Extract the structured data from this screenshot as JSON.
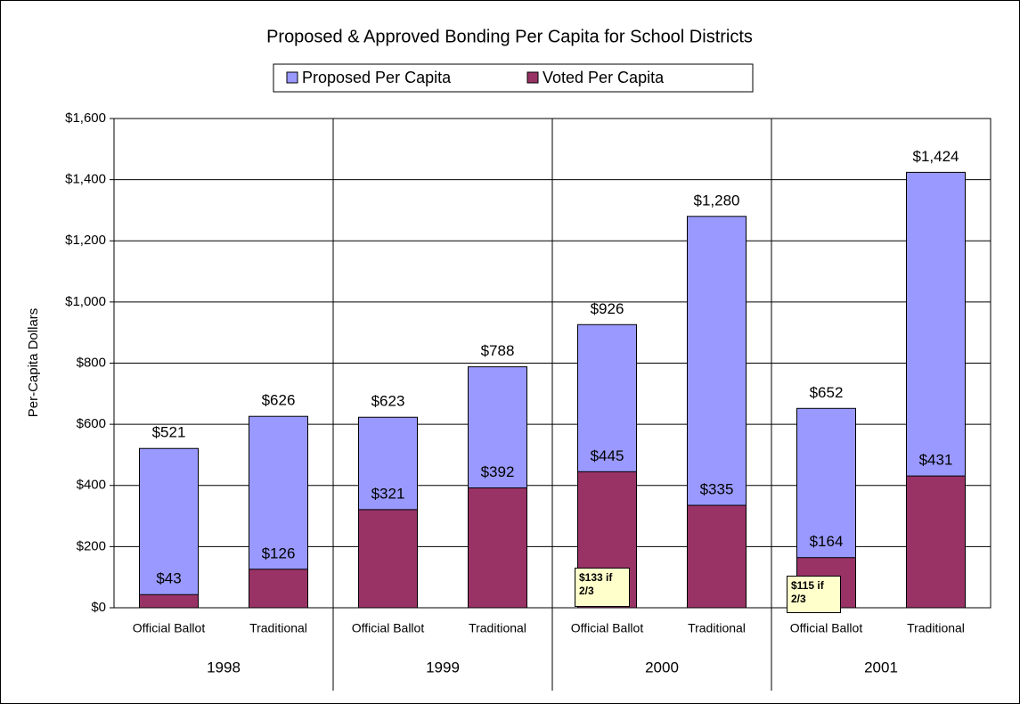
{
  "chart_data": {
    "type": "bar",
    "title": "Proposed & Approved Bonding Per Capita for School Districts",
    "y_label": "Per-Capita Dollars",
    "categories": [
      "Official Ballot",
      "Traditional",
      "Official Ballot",
      "Traditional",
      "Official Ballot",
      "Traditional",
      "Official Ballot",
      "Traditional"
    ],
    "groups": [
      "1998",
      "1999",
      "2000",
      "2001"
    ],
    "series": [
      {
        "name": "Proposed Per Capita",
        "color": "#9999ff",
        "values": [
          521,
          626,
          623,
          788,
          926,
          1280,
          652,
          1424
        ],
        "value_labels": [
          "$521",
          "$626",
          "$623",
          "$788",
          "$926",
          "$1,280",
          "$652",
          "$1,424"
        ]
      },
      {
        "name": "Voted Per Capita",
        "color": "#993366",
        "values": [
          43,
          126,
          321,
          392,
          445,
          335,
          164,
          431
        ],
        "value_labels": [
          "$43",
          "$126",
          "$321",
          "$392",
          "$445",
          "$335",
          "$164",
          "$431"
        ]
      }
    ],
    "annotations": [
      "$133 if 2/3",
      "$115 if 2/3"
    ],
    "ylim": [
      0,
      1600
    ],
    "yticks": [
      {
        "value": 0,
        "label": "$0"
      },
      {
        "value": 200,
        "label": "$200"
      },
      {
        "value": 400,
        "label": "$400"
      },
      {
        "value": 600,
        "label": "$600"
      },
      {
        "value": 800,
        "label": "$800"
      },
      {
        "value": 1000,
        "label": "$1,000"
      },
      {
        "value": 1200,
        "label": "$1,200"
      },
      {
        "value": 1400,
        "label": "$1,400"
      },
      {
        "value": 1600,
        "label": "$1,600"
      }
    ],
    "grid": true,
    "legend": "top"
  }
}
